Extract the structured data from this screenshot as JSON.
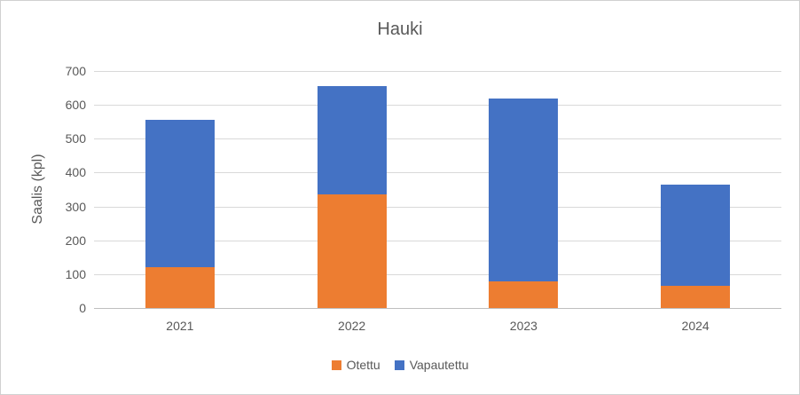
{
  "chart_data": {
    "type": "bar",
    "stacked": true,
    "title": "Hauki",
    "ylabel": "Saalis (kpl)",
    "xlabel": "",
    "categories": [
      "2021",
      "2022",
      "2023",
      "2024"
    ],
    "series": [
      {
        "name": "Otettu",
        "color": "#ED7D31",
        "values": [
          120,
          335,
          80,
          65
        ]
      },
      {
        "name": "Vapautettu",
        "color": "#4472C4",
        "values": [
          435,
          320,
          540,
          300
        ]
      }
    ],
    "ylim": [
      0,
      700
    ],
    "yticks": [
      0,
      100,
      200,
      300,
      400,
      500,
      600,
      700
    ],
    "grid": true,
    "legend_position": "bottom"
  },
  "colors": {
    "text": "#595959",
    "gridline": "#D9D9D9",
    "axis_line": "#BFBFBF",
    "frame_border": "#D0D0D0",
    "background": "#FFFFFF"
  }
}
